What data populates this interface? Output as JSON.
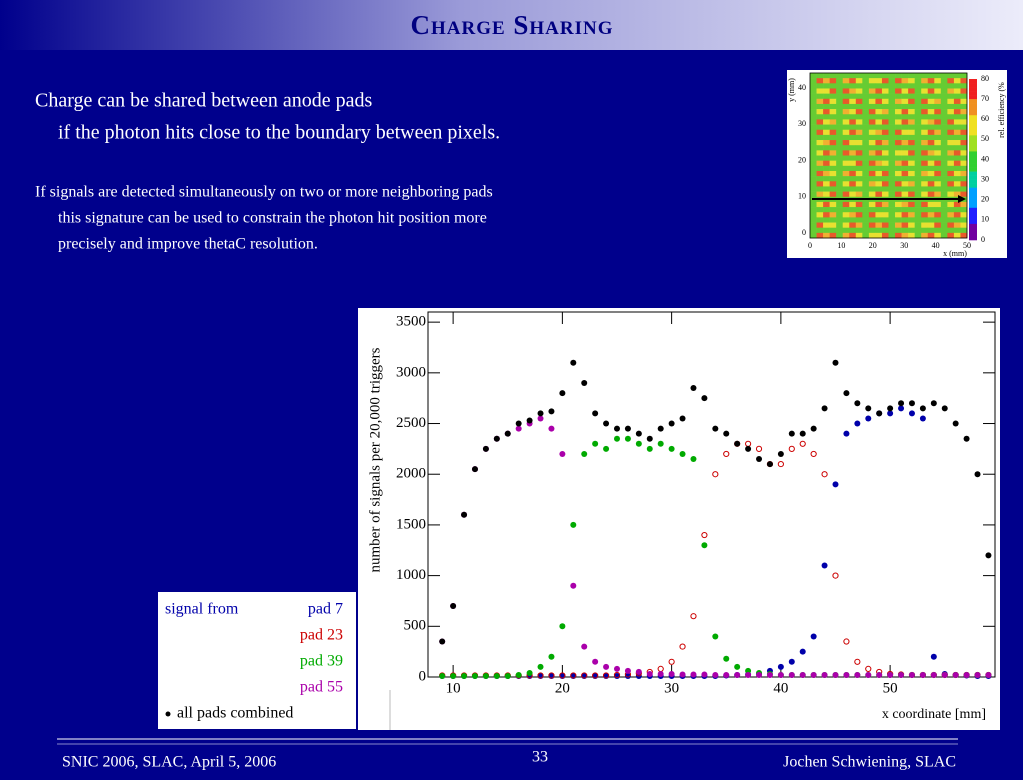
{
  "slide": {
    "title": "Charge Sharing",
    "paragraph1": [
      "Charge can be shared between anode pads",
      "if the photon hits close to the boundary between pixels."
    ],
    "paragraph2": [
      "If signals are detected simultaneously on two or more neighboring pads",
      "this signature can be used to constrain the photon hit position more",
      "precisely and improve thetaC resolution."
    ],
    "footer_left": "SNIC 2006, SLAC, April 5, 2006",
    "page_number": "33",
    "footer_right": "Jochen Schwiening, SLAC"
  },
  "inset": {
    "x_label": "x (mm)",
    "y_label": "y (mm)",
    "colorbar_label": "rel. efficiency (%",
    "xticks": [
      0,
      10,
      20,
      30,
      40,
      50
    ],
    "yticks": [
      0,
      10,
      20,
      30,
      40
    ],
    "colorbar_ticks": [
      0,
      10,
      20,
      30,
      40,
      50,
      60,
      70,
      80
    ]
  },
  "chart_data": {
    "type": "scatter",
    "x_label": "x coordinate [mm]",
    "y_label": "number of signals per 20,000 triggers",
    "legend_title": "signal from",
    "x": [
      9,
      10,
      11,
      12,
      13,
      14,
      15,
      16,
      17,
      18,
      19,
      20,
      21,
      22,
      23,
      24,
      25,
      26,
      27,
      28,
      29,
      30,
      31,
      32,
      33,
      34,
      35,
      36,
      37,
      38,
      39,
      40,
      41,
      42,
      43,
      44,
      45,
      46,
      47,
      48,
      49,
      50,
      51,
      52,
      53,
      54,
      55,
      56,
      57,
      58,
      59
    ],
    "series": [
      {
        "name": "pad 7",
        "color": "#0000aa",
        "marker": "filled",
        "values": [
          10,
          10,
          10,
          10,
          10,
          10,
          10,
          10,
          10,
          10,
          10,
          10,
          10,
          10,
          10,
          10,
          10,
          10,
          10,
          10,
          10,
          10,
          10,
          10,
          10,
          10,
          15,
          20,
          25,
          30,
          60,
          100,
          150,
          250,
          400,
          1100,
          1900,
          2400,
          2500,
          2550,
          2600,
          2600,
          2650,
          2600,
          2550,
          200,
          30,
          20,
          15,
          10,
          10
        ]
      },
      {
        "name": "pad 23",
        "color": "#cc0000",
        "marker": "open",
        "values": [
          15,
          15,
          15,
          15,
          15,
          15,
          15,
          15,
          15,
          15,
          15,
          15,
          15,
          15,
          15,
          15,
          20,
          25,
          35,
          50,
          80,
          150,
          300,
          600,
          1400,
          2000,
          2200,
          2300,
          2300,
          2250,
          2100,
          2100,
          2250,
          2300,
          2200,
          2000,
          1000,
          350,
          150,
          80,
          50,
          30,
          25,
          20,
          20,
          20,
          20,
          20,
          20,
          20,
          20
        ]
      },
      {
        "name": "pad 39",
        "color": "#00aa00",
        "marker": "filled",
        "values": [
          10,
          10,
          10,
          10,
          10,
          10,
          10,
          20,
          40,
          100,
          200,
          500,
          1500,
          2200,
          2300,
          2250,
          2350,
          2350,
          2300,
          2250,
          2300,
          2250,
          2200,
          2150,
          1300,
          400,
          180,
          100,
          60,
          40,
          30,
          20,
          20,
          20,
          20,
          20,
          20,
          20,
          20,
          20,
          20,
          20,
          20,
          20,
          20,
          20,
          20,
          20,
          20,
          20,
          20
        ]
      },
      {
        "name": "pad 55",
        "color": "#aa00aa",
        "marker": "filled",
        "values": [
          350,
          700,
          1600,
          2050,
          2250,
          2350,
          2400,
          2450,
          2500,
          2550,
          2450,
          2200,
          900,
          300,
          150,
          100,
          80,
          60,
          50,
          30,
          30,
          30,
          25,
          25,
          25,
          20,
          20,
          20,
          20,
          20,
          20,
          20,
          20,
          20,
          20,
          20,
          20,
          20,
          20,
          20,
          20,
          20,
          20,
          20,
          20,
          20,
          20,
          20,
          20,
          20,
          20
        ]
      },
      {
        "name": "all pads combined",
        "color": "#000000",
        "marker": "filled",
        "values": [
          350,
          700,
          1600,
          2050,
          2250,
          2350,
          2400,
          2500,
          2530,
          2600,
          2620,
          2800,
          3100,
          2900,
          2600,
          2500,
          2450,
          2450,
          2400,
          2350,
          2450,
          2500,
          2550,
          2850,
          2750,
          2450,
          2400,
          2300,
          2250,
          2150,
          2100,
          2200,
          2400,
          2400,
          2450,
          2650,
          3100,
          2800,
          2700,
          2650,
          2600,
          2650,
          2700,
          2700,
          2650,
          2700,
          2650,
          2500,
          2350,
          2000,
          1200
        ]
      }
    ],
    "xlim": [
      7.7,
      59.6
    ],
    "ylim": [
      0,
      3600
    ],
    "xticks": [
      10,
      20,
      30,
      40,
      50
    ],
    "yticks": [
      0,
      500,
      1000,
      1500,
      2000,
      2500,
      3000,
      3500
    ]
  }
}
